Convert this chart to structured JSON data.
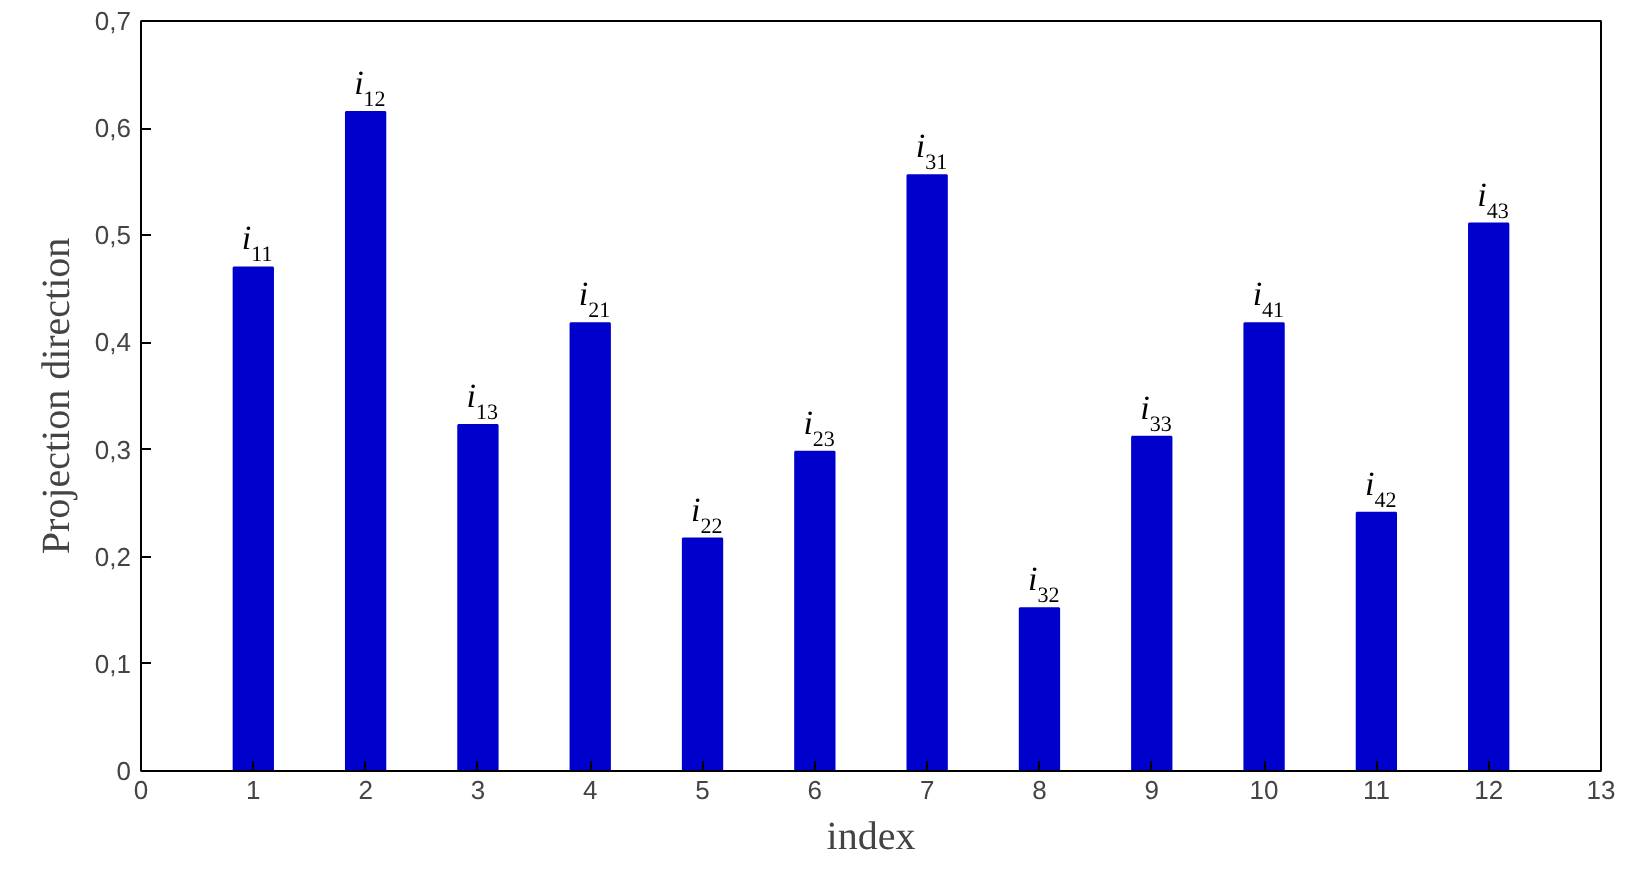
{
  "chart_data": {
    "type": "bar",
    "xlabel": "index",
    "ylabel": "Projection direction",
    "x": [
      1,
      2,
      3,
      4,
      5,
      6,
      7,
      8,
      9,
      10,
      11,
      12
    ],
    "values": [
      0.47,
      0.615,
      0.323,
      0.418,
      0.217,
      0.298,
      0.556,
      0.152,
      0.312,
      0.418,
      0.241,
      0.511
    ],
    "color": "#0000cc",
    "xlim": [
      0,
      13
    ],
    "xticks": [
      0,
      1,
      2,
      3,
      4,
      5,
      6,
      7,
      8,
      9,
      10,
      11,
      12,
      13
    ],
    "ylim": [
      0,
      0.7
    ],
    "yticks": [
      0,
      {
        "value": 0.1,
        "label": "0,1"
      },
      {
        "value": 0.2,
        "label": "0,2"
      },
      {
        "value": 0.3,
        "label": "0,3"
      },
      {
        "value": 0.4,
        "label": "0,4"
      },
      {
        "value": 0.5,
        "label": "0,5"
      },
      {
        "value": 0.6,
        "label": "0,6"
      },
      {
        "value": 0.7,
        "label": "0,7"
      }
    ],
    "grid": false,
    "annotations": [
      {
        "text": "i$_{11}$",
        "x": 1,
        "y": 0.47
      },
      {
        "text": "i$_{12}$",
        "x": 2,
        "y": 0.615
      },
      {
        "text": "i$_{13}$",
        "x": 3,
        "y": 0.323
      },
      {
        "text": "i$_{21}$",
        "x": 4,
        "y": 0.418
      },
      {
        "text": "i$_{22}$",
        "x": 5,
        "y": 0.217
      },
      {
        "text": "i$_{23}$",
        "x": 6,
        "y": 0.298
      },
      {
        "text": "i$_{31}$",
        "x": 7,
        "y": 0.556
      },
      {
        "text": "i$_{32}$",
        "x": 8,
        "y": 0.152
      },
      {
        "text": "i$_{33}$",
        "x": 9,
        "y": 0.312
      },
      {
        "text": "i$_{41}$",
        "x": 10,
        "y": 0.418
      },
      {
        "text": "i$_{42}$",
        "x": 11,
        "y": 0.241
      },
      {
        "text": "i$_{43}$",
        "x": 12,
        "y": 0.511
      }
    ]
  }
}
